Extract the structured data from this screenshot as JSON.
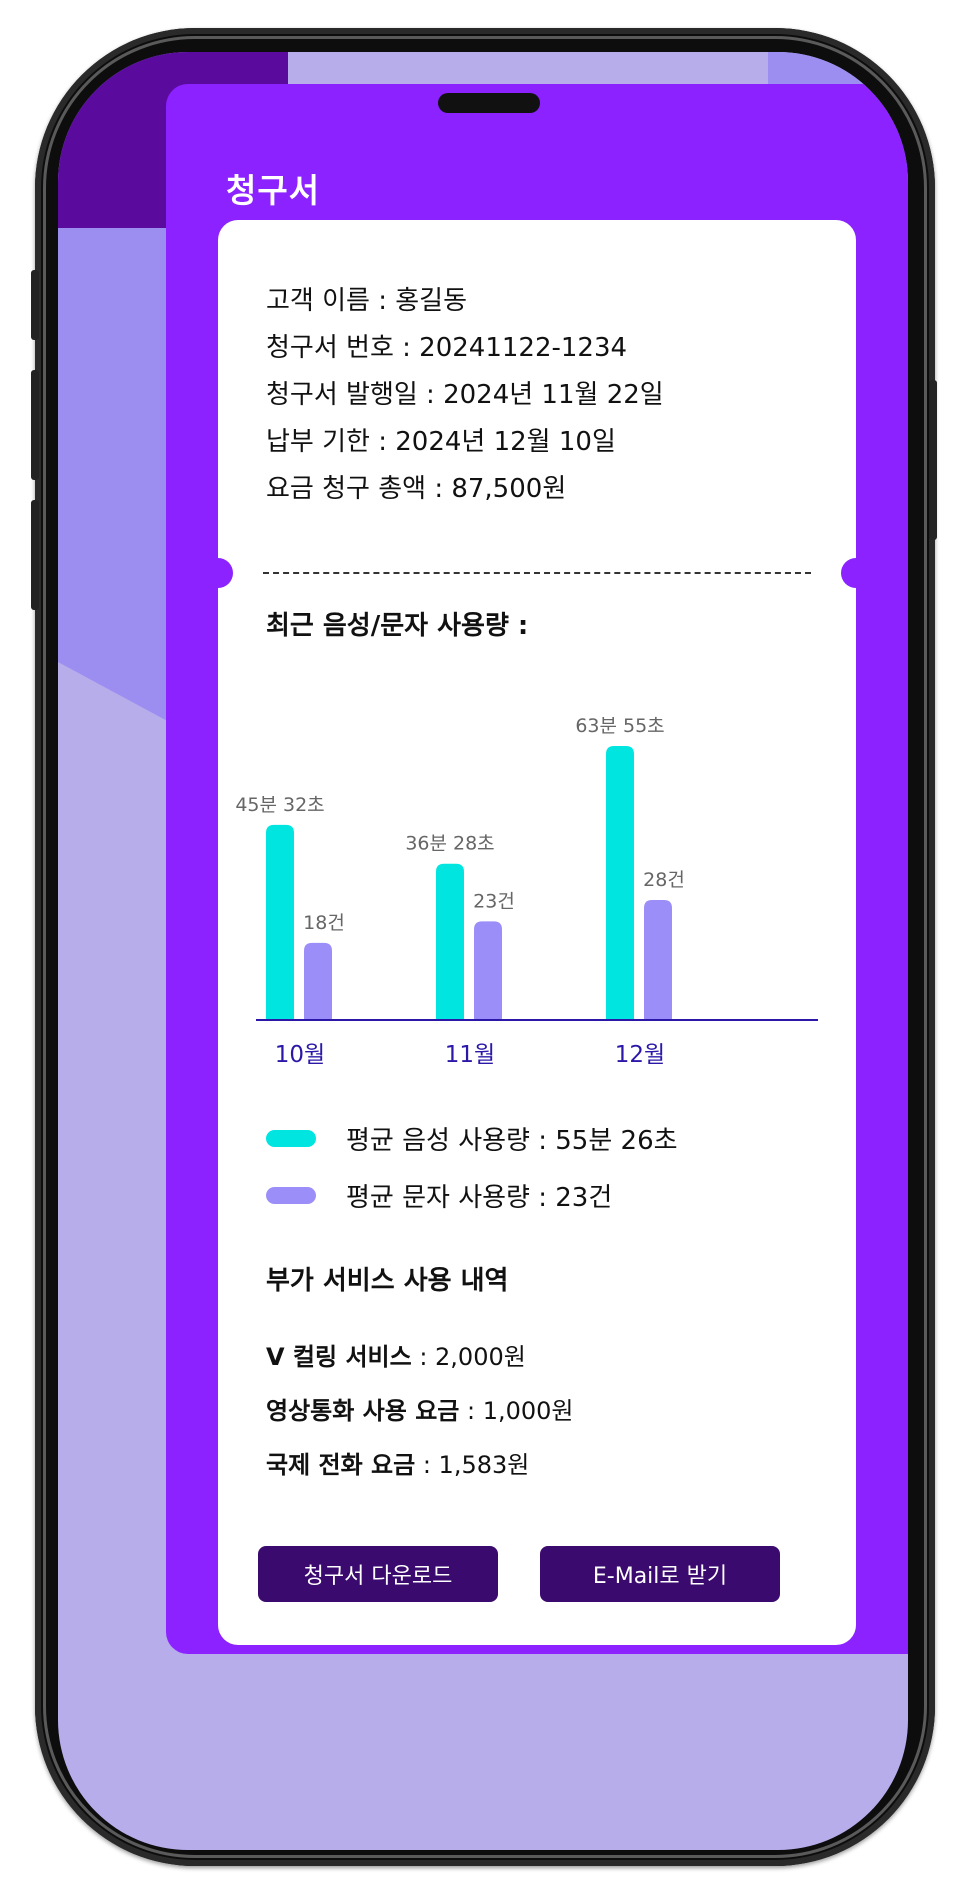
{
  "header": {
    "title": "청구서"
  },
  "bill": {
    "customer": "고객 이름 : 홍길동",
    "number": "청구서 번호 : 20241122-1234",
    "issued": "청구서 발행일 : 2024년 11월 22일",
    "due": "납부 기한 : 2024년 12월 10일",
    "total": "요금 청구 총액 : 87,500원"
  },
  "usage": {
    "title": "최근 음성/문자 사용량 :"
  },
  "chart_data": {
    "type": "bar",
    "categories": [
      "10월",
      "11월",
      "12월"
    ],
    "series": [
      {
        "name": "평균 음성 사용량",
        "values": [
          45.53,
          36.47,
          63.92
        ],
        "labels": [
          "45분 32초",
          "36분 28초",
          "63분 55초"
        ],
        "color": "#00e5e0"
      },
      {
        "name": "평균 문자 사용량",
        "values": [
          18,
          23,
          28
        ],
        "labels": [
          "18건",
          "23건",
          "28건"
        ],
        "color": "#9b8ef8"
      }
    ],
    "ylim": [
      0,
      70
    ],
    "axis_color": "#2b18a8"
  },
  "legend": {
    "voice": "평균 음성 사용량 : 55분 26초",
    "sms": "평균 문자 사용량 : 23건",
    "voice_color": "#00e5e0",
    "sms_color": "#9b8ef8"
  },
  "services": {
    "title": "부가 서비스 사용 내역",
    "items": [
      {
        "name": "V 컬링 서비스",
        "price": " : 2,000원"
      },
      {
        "name": "영상통화 사용 요금",
        "price": " : 1,000원"
      },
      {
        "name": "국제 전화 요금",
        "price": " : 1,583원"
      }
    ]
  },
  "buttons": {
    "download": "청구서 다운로드",
    "email": "E-Mail로 받기"
  }
}
